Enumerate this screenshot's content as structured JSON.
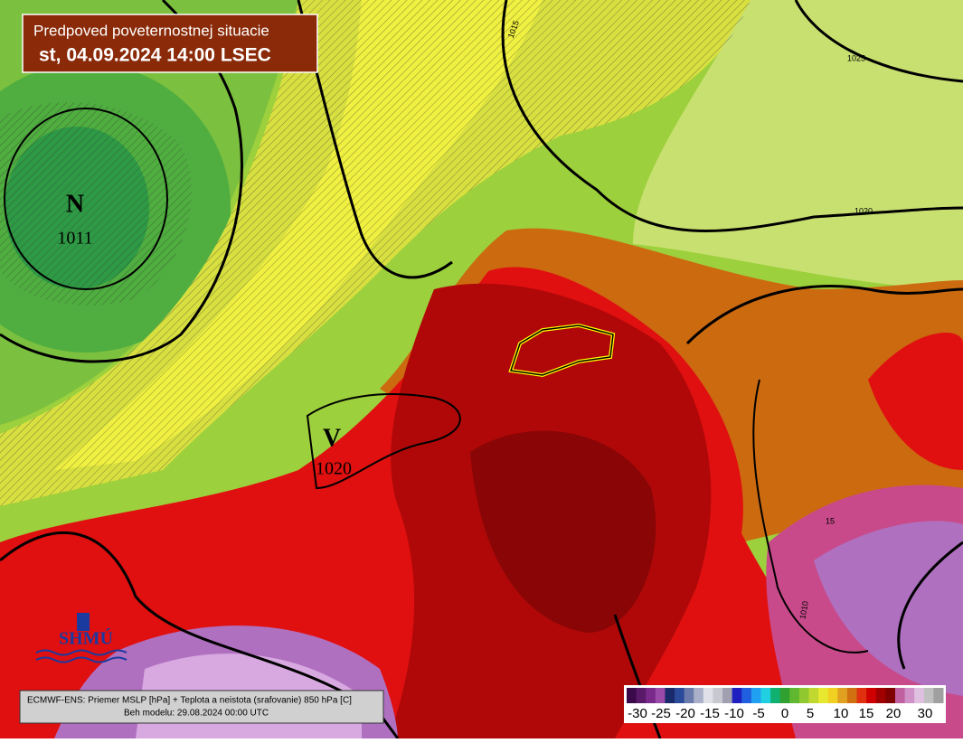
{
  "header": {
    "line1": "Predpoved poveternostnej situacie",
    "line2": "st, 04.09.2024 14:00 LSEC"
  },
  "pressure_centers": [
    {
      "symbol": "N",
      "value": 1011
    },
    {
      "symbol": "V",
      "value": 1020
    }
  ],
  "isobar_labels": [
    1025,
    1020,
    1015,
    15,
    1010
  ],
  "logo": "SHMÚ",
  "footer": {
    "line1": "ECMWF-ENS: Priemer MSLP [hPa] + Teplota a neistota (srafovanie) 850 hPa [C]",
    "line2": "Beh modelu: 29.08.2024 00:00 UTC"
  },
  "colorbar": {
    "ticks": [
      -30,
      -25,
      -20,
      -15,
      -10,
      -5,
      0,
      5,
      10,
      15,
      20,
      30
    ],
    "colors": [
      "#3a0a4a",
      "#5a1a6a",
      "#7a2a8a",
      "#9a4aa8",
      "#1a2a6a",
      "#2a4a9a",
      "#6a7aaa",
      "#aab0c8",
      "#e0e0e8",
      "#c8c8d0",
      "#a0a0b0",
      "#2020c0",
      "#2060e0",
      "#20a0f0",
      "#20d0e0",
      "#10b070",
      "#30a030",
      "#60b830",
      "#90c830",
      "#c0d830",
      "#e8e830",
      "#f0d020",
      "#e0a020",
      "#d07010",
      "#e03010",
      "#d00000",
      "#a00000",
      "#800000",
      "#c060a0",
      "#d090c8",
      "#e0c0e0",
      "#c0c0c0",
      "#a0a0a0"
    ]
  }
}
